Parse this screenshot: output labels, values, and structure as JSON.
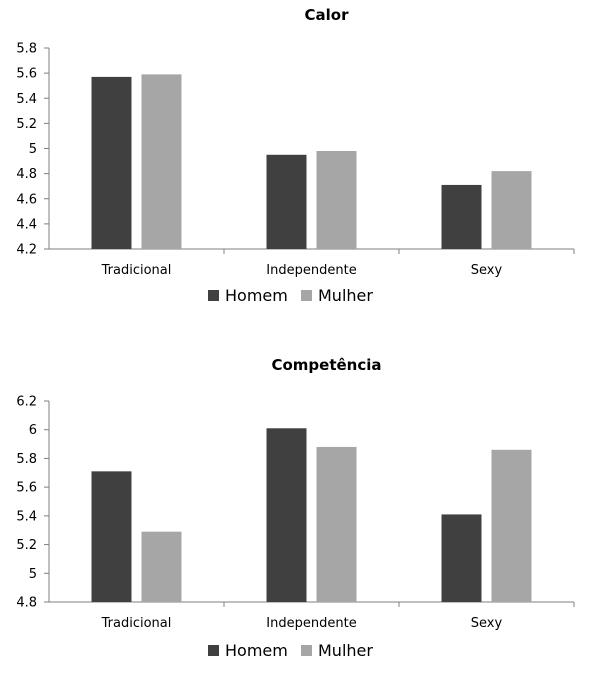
{
  "chart_data": [
    {
      "type": "bar",
      "title": "Calor",
      "categories": [
        "Tradicional",
        "Independente",
        "Sexy"
      ],
      "series": [
        {
          "name": "Homem",
          "values": [
            5.57,
            4.95,
            4.71
          ]
        },
        {
          "name": "Mulher",
          "values": [
            5.59,
            4.98,
            4.82
          ]
        }
      ],
      "ylim": [
        4.2,
        5.8
      ],
      "yticks": [
        "5.8",
        "5.6",
        "5.4",
        "5.2",
        "5",
        "4.8",
        "4.6",
        "4.4",
        "4.2"
      ],
      "legend_position": "bottom",
      "grid": false
    },
    {
      "type": "bar",
      "title": "Competência",
      "categories": [
        "Tradicional",
        "Independente",
        "Sexy"
      ],
      "series": [
        {
          "name": "Homem",
          "values": [
            5.71,
            6.01,
            5.41
          ]
        },
        {
          "name": "Mulher",
          "values": [
            5.29,
            5.88,
            5.86
          ]
        }
      ],
      "ylim": [
        4.8,
        6.2
      ],
      "yticks": [
        "6.2",
        "6",
        "5.8",
        "5.6",
        "5.4",
        "5.2",
        "5",
        "4.8"
      ],
      "legend_position": "bottom",
      "grid": false
    }
  ],
  "colors": {
    "Homem": "#404040",
    "Mulher": "#a6a6a6"
  }
}
